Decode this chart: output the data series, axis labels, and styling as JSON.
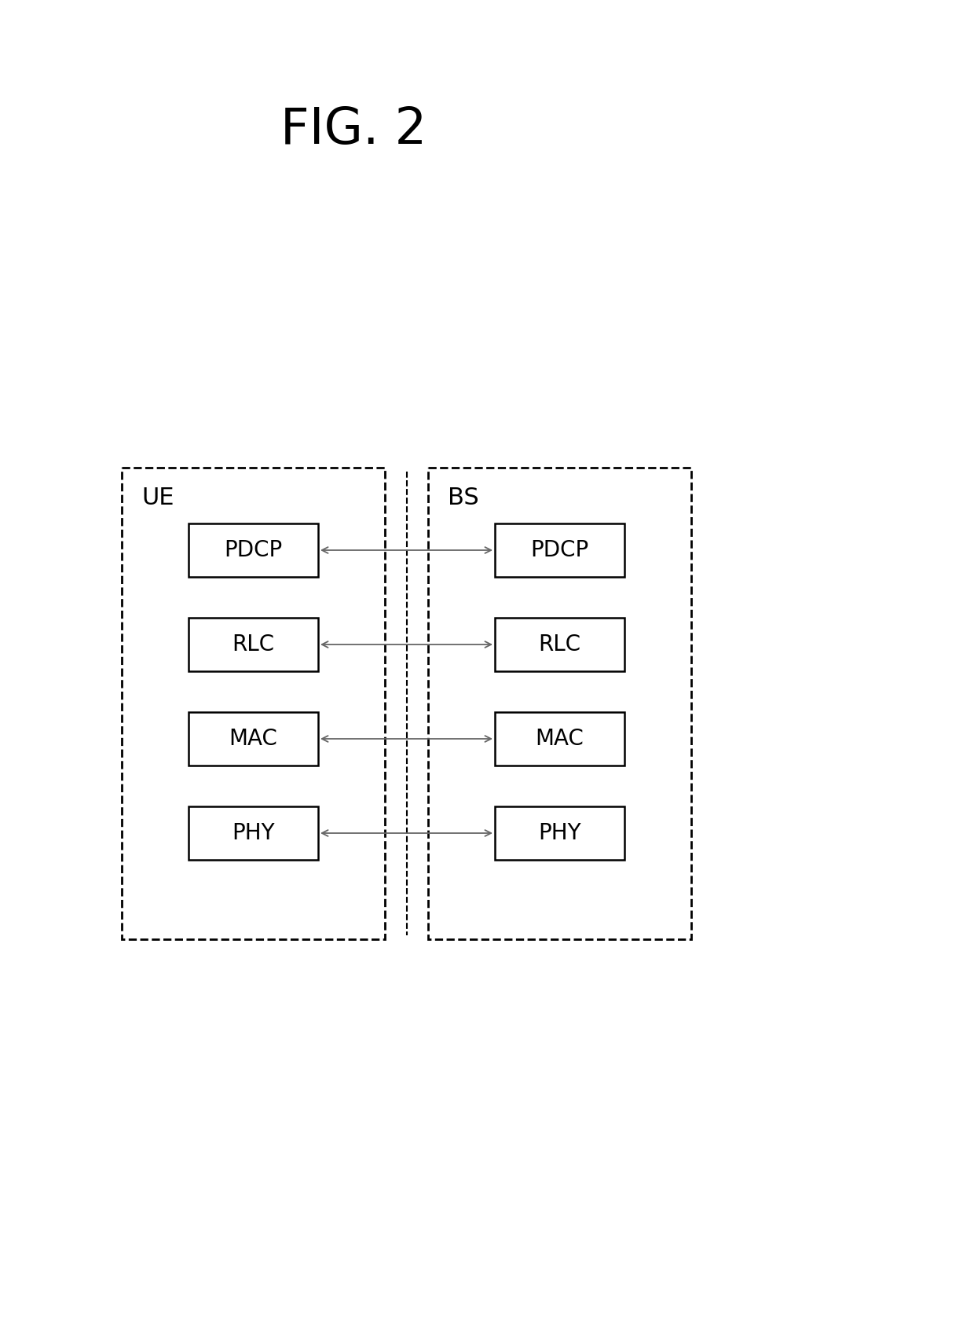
{
  "title": "FIG. 2",
  "title_fontsize": 46,
  "background_color": "#ffffff",
  "text_color": "#000000",
  "ue_label": "UE",
  "bs_label": "BS",
  "layers": [
    "PDCP",
    "RLC",
    "MAC",
    "PHY"
  ],
  "label_fontsize": 22,
  "layer_fontsize": 20,
  "fig_width": 12.4,
  "fig_height": 16.96,
  "dpi": 100
}
